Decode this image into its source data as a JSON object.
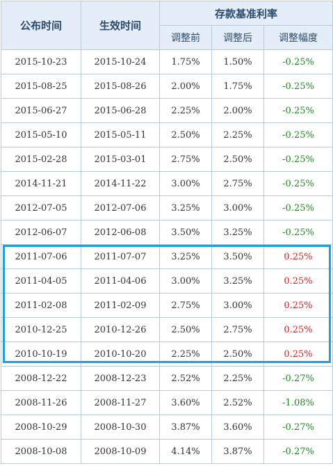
{
  "header": {
    "publish_time": "公布时间",
    "effective_time": "生效时间",
    "rate_group": "存款基准利率",
    "before": "调整前",
    "after": "调整后",
    "change": "调整幅度"
  },
  "rows": [
    {
      "publish": "2015-10-23",
      "effective": "2015-10-24",
      "before": "1.75%",
      "after": "1.50%",
      "change": "-0.25%"
    },
    {
      "publish": "2015-08-25",
      "effective": "2015-08-26",
      "before": "2.00%",
      "after": "1.75%",
      "change": "-0.25%"
    },
    {
      "publish": "2015-06-27",
      "effective": "2015-06-28",
      "before": "2.25%",
      "after": "2.00%",
      "change": "-0.25%"
    },
    {
      "publish": "2015-05-10",
      "effective": "2015-05-11",
      "before": "2.50%",
      "after": "2.25%",
      "change": "-0.25%"
    },
    {
      "publish": "2015-02-28",
      "effective": "2015-03-01",
      "before": "2.75%",
      "after": "2.50%",
      "change": "-0.25%"
    },
    {
      "publish": "2014-11-21",
      "effective": "2014-11-22",
      "before": "3.00%",
      "after": "2.75%",
      "change": "-0.25%"
    },
    {
      "publish": "2012-07-05",
      "effective": "2012-07-06",
      "before": "3.25%",
      "after": "3.00%",
      "change": "-0.25%"
    },
    {
      "publish": "2012-06-07",
      "effective": "2012-06-08",
      "before": "3.50%",
      "after": "3.25%",
      "change": "-0.25%"
    },
    {
      "publish": "2011-07-06",
      "effective": "2011-07-07",
      "before": "3.25%",
      "after": "3.50%",
      "change": "0.25%"
    },
    {
      "publish": "2011-04-05",
      "effective": "2011-04-06",
      "before": "3.00%",
      "after": "3.25%",
      "change": "0.25%"
    },
    {
      "publish": "2011-02-08",
      "effective": "2011-02-09",
      "before": "2.75%",
      "after": "3.00%",
      "change": "0.25%"
    },
    {
      "publish": "2010-12-25",
      "effective": "2010-12-26",
      "before": "2.50%",
      "after": "2.75%",
      "change": "0.25%"
    },
    {
      "publish": "2010-10-19",
      "effective": "2010-10-20",
      "before": "2.25%",
      "after": "2.50%",
      "change": "0.25%"
    },
    {
      "publish": "2008-12-22",
      "effective": "2008-12-23",
      "before": "2.52%",
      "after": "2.25%",
      "change": "-0.27%"
    },
    {
      "publish": "2008-11-26",
      "effective": "2008-11-27",
      "before": "3.60%",
      "after": "2.52%",
      "change": "-1.08%"
    },
    {
      "publish": "2008-10-29",
      "effective": "2008-10-30",
      "before": "3.87%",
      "after": "3.60%",
      "change": "-0.27%"
    },
    {
      "publish": "2008-10-08",
      "effective": "2008-10-09",
      "before": "4.14%",
      "after": "3.87%",
      "change": "-0.27%"
    }
  ],
  "colors": {
    "header_bg": "#e5eef8",
    "header_text": "#2c4a6b",
    "border": "#b8c9d9",
    "negative": "#1f8a1f",
    "positive": "#d62020",
    "highlight": "#1e9fe0"
  }
}
